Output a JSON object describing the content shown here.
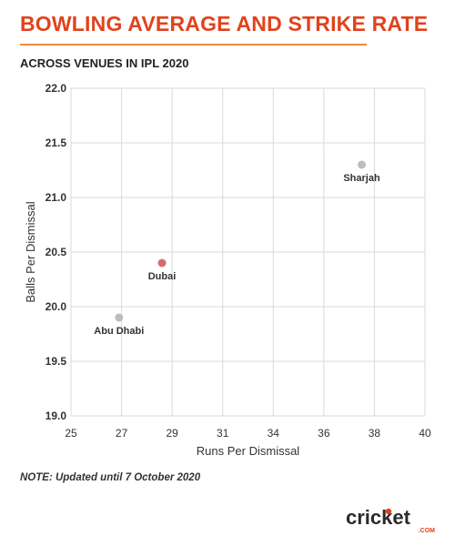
{
  "header": {
    "title": "BOWLING AVERAGE AND STRIKE RATE",
    "subtitle": "ACROSS VENUES IN IPL 2020"
  },
  "footer": {
    "note": "NOTE: Updated until 7 October 2020",
    "logo": {
      "word": "cricket",
      "suffix": ".COM"
    }
  },
  "colors": {
    "title": "#e1421c",
    "rule": "#ef8a3c",
    "highlight": "#d26e6a",
    "default_point": "#bdbdbd",
    "grid": "#d9d9d9"
  },
  "chart_data": {
    "type": "scatter",
    "xlabel": "Runs Per Dismissal",
    "ylabel": "Balls Per Dismissal",
    "x_ticks": [
      25,
      27,
      29,
      31,
      34,
      36,
      38,
      40
    ],
    "y_ticks": [
      19.0,
      19.5,
      20.0,
      20.5,
      21.0,
      21.5,
      22.0
    ],
    "xlim": [
      25,
      40
    ],
    "ylim": [
      19.0,
      22.0
    ],
    "grid": true,
    "points": [
      {
        "label": "Abu Dhabi",
        "x": 26.9,
        "y": 19.9,
        "highlight": false
      },
      {
        "label": "Dubai",
        "x": 28.6,
        "y": 20.4,
        "highlight": true
      },
      {
        "label": "Sharjah",
        "x": 37.5,
        "y": 21.3,
        "highlight": false
      }
    ]
  }
}
